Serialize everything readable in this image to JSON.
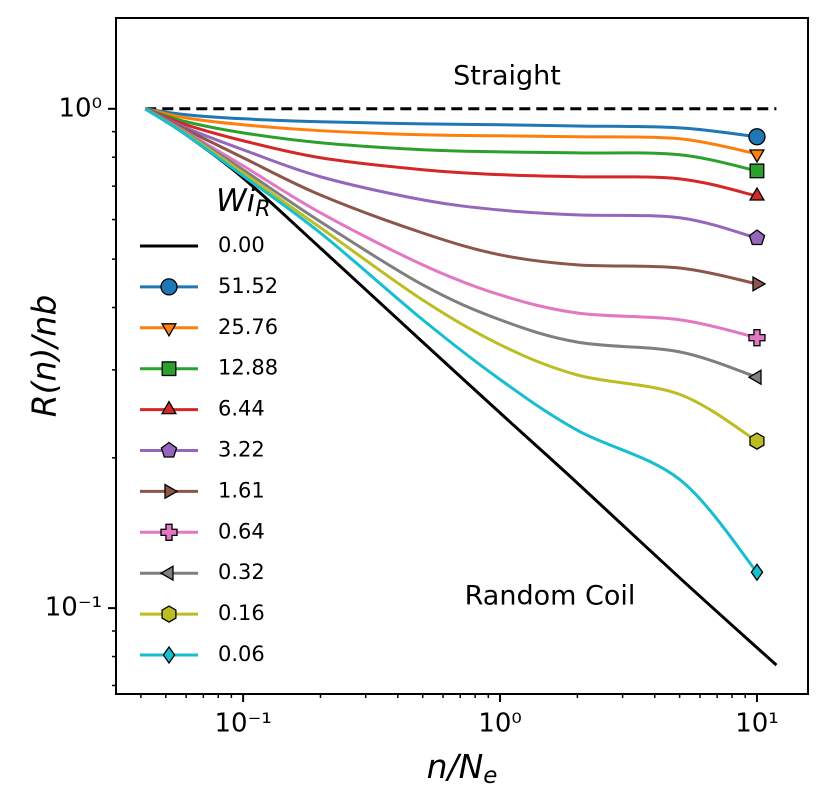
{
  "chart_data": {
    "type": "line",
    "xlabel": {
      "text": "n/N",
      "subscript": "e"
    },
    "ylabel": "R(n)/nb",
    "log_x": true,
    "log_y": true,
    "xlim": [
      0.032,
      15.8
    ],
    "ylim": [
      0.0673,
      1.52
    ],
    "xticks": [
      {
        "value": 0.1,
        "label": "10⁻¹"
      },
      {
        "value": 1,
        "label": "10⁰"
      },
      {
        "value": 10,
        "label": "10¹"
      }
    ],
    "yticks": [
      {
        "value": 0.1,
        "label": "10⁻¹"
      },
      {
        "value": 1,
        "label": "10⁰"
      }
    ],
    "xticks_minor": [
      0.04,
      0.05,
      0.06,
      0.07,
      0.08,
      0.09,
      0.2,
      0.3,
      0.4,
      0.5,
      0.6,
      0.7,
      0.8,
      0.9,
      2,
      3,
      4,
      5,
      6,
      7,
      8,
      9
    ],
    "yticks_minor": [
      0.07,
      0.08,
      0.09,
      0.2,
      0.3,
      0.4,
      0.5,
      0.6,
      0.7,
      0.8,
      0.9
    ],
    "legend_title": {
      "text": "Wi",
      "subscript": "R"
    },
    "legend": "upper left",
    "reference_line": {
      "y": 1,
      "color": "#000000",
      "dashed": true,
      "label": "Straight"
    },
    "annotation": "Random Coil",
    "series": [
      {
        "name": "0.00",
        "color": "#000000",
        "marker": null,
        "x": [
          0.0416,
          0.06,
          0.1,
          0.2,
          0.5,
          1,
          2,
          5,
          11.9
        ],
        "values": [
          1,
          0.887,
          0.727,
          0.526,
          0.341,
          0.246,
          0.178,
          0.115,
          0.0769
        ]
      },
      {
        "name": "51.52",
        "color": "#1f77b4",
        "marker": "circle",
        "x": [
          0.0416,
          0.06,
          0.1,
          0.2,
          0.5,
          1,
          2,
          5,
          10
        ],
        "values": [
          1,
          0.973,
          0.955,
          0.942,
          0.933,
          0.929,
          0.924,
          0.916,
          0.879
        ]
      },
      {
        "name": "25.76",
        "color": "#ff7f0e",
        "marker": "triangle-down",
        "x": [
          0.0416,
          0.06,
          0.1,
          0.2,
          0.5,
          1,
          2,
          5,
          10
        ],
        "values": [
          1,
          0.959,
          0.929,
          0.904,
          0.887,
          0.883,
          0.879,
          0.871,
          0.812
        ]
      },
      {
        "name": "12.88",
        "color": "#2ca02c",
        "marker": "square",
        "x": [
          0.0416,
          0.06,
          0.1,
          0.2,
          0.5,
          1,
          2,
          5,
          10
        ],
        "values": [
          1,
          0.942,
          0.895,
          0.855,
          0.828,
          0.82,
          0.816,
          0.809,
          0.751
        ]
      },
      {
        "name": "6.44",
        "color": "#d62728",
        "marker": "triangle-up",
        "x": [
          0.0416,
          0.06,
          0.1,
          0.2,
          0.5,
          1,
          2,
          5,
          10
        ],
        "values": [
          1,
          0.929,
          0.863,
          0.798,
          0.755,
          0.738,
          0.731,
          0.724,
          0.669
        ]
      },
      {
        "name": "3.22",
        "color": "#9467bd",
        "marker": "pentagon",
        "x": [
          0.0416,
          0.06,
          0.1,
          0.2,
          0.5,
          1,
          2,
          5,
          10
        ],
        "values": [
          1,
          0.916,
          0.828,
          0.731,
          0.657,
          0.627,
          0.613,
          0.605,
          0.551
        ]
      },
      {
        "name": "1.61",
        "color": "#8c564b",
        "marker": "triangle-right",
        "x": [
          0.0416,
          0.06,
          0.1,
          0.2,
          0.5,
          1,
          2,
          5,
          10
        ],
        "values": [
          1,
          0.908,
          0.798,
          0.672,
          0.564,
          0.51,
          0.487,
          0.48,
          0.446
        ]
      },
      {
        "name": "0.64",
        "color": "#e377c2",
        "marker": "plus",
        "x": [
          0.0416,
          0.06,
          0.1,
          0.2,
          0.5,
          1,
          2,
          5,
          10
        ],
        "values": [
          1,
          0.899,
          0.769,
          0.619,
          0.487,
          0.424,
          0.39,
          0.378,
          0.348
        ]
      },
      {
        "name": "0.32",
        "color": "#7f7f7f",
        "marker": "triangle-left",
        "x": [
          0.0416,
          0.06,
          0.1,
          0.2,
          0.5,
          1,
          2,
          5,
          10
        ],
        "values": [
          1,
          0.895,
          0.755,
          0.594,
          0.444,
          0.378,
          0.341,
          0.326,
          0.29
        ]
      },
      {
        "name": "0.16",
        "color": "#bcbd22",
        "marker": "hexagon",
        "x": [
          0.0416,
          0.06,
          0.1,
          0.2,
          0.5,
          1,
          2,
          5,
          10
        ],
        "values": [
          1,
          0.891,
          0.744,
          0.578,
          0.414,
          0.337,
          0.293,
          0.268,
          0.216
        ]
      },
      {
        "name": "0.06",
        "color": "#17becf",
        "marker": "diamond",
        "x": [
          0.0416,
          0.06,
          0.1,
          0.2,
          0.5,
          1,
          2,
          5,
          10
        ],
        "values": [
          1,
          0.887,
          0.734,
          0.564,
          0.378,
          0.287,
          0.227,
          0.181,
          0.118
        ]
      }
    ]
  }
}
